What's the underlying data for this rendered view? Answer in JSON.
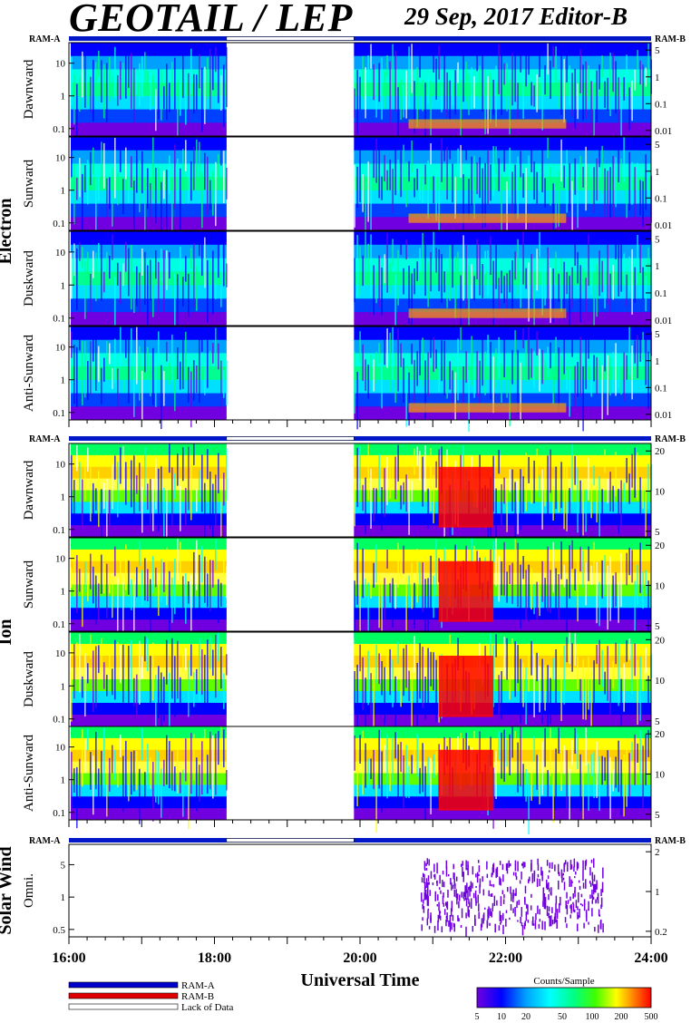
{
  "header": {
    "title": "GEOTAIL / LEP",
    "date_editor": "29 Sep, 2017   Editor-B"
  },
  "chart_data": {
    "type": "heatmap",
    "x_axis": {
      "label": "Universal Time",
      "range": [
        "16:00",
        "24:00"
      ],
      "ticks": [
        "16:00",
        "18:00",
        "20:00",
        "22:00",
        "24:00"
      ]
    },
    "ram_labels": {
      "left": "RAM-A",
      "right": "RAM-B"
    },
    "data_gap": {
      "start": "18:10",
      "end": "19:55"
    },
    "groups": [
      {
        "name": "Electron",
        "left_ticks": [
          "10",
          "1",
          "0.1"
        ],
        "right_ticks": [
          "5",
          "1",
          "0.1",
          "0.01"
        ],
        "panels": [
          "Dawnward",
          "Sunward",
          "Duskward",
          "Anti-Sunward"
        ]
      },
      {
        "name": "Ion",
        "left_ticks": [
          "10",
          "1",
          "0.1"
        ],
        "right_ticks": [
          "20",
          "10",
          "5"
        ],
        "panels": [
          "Dawnward",
          "Sunward",
          "Duskward",
          "Anti-Sunward"
        ]
      },
      {
        "name": "Solar Wind",
        "left_ticks": [
          "5",
          "1",
          "0.5"
        ],
        "right_ticks": [
          "2",
          "1",
          "0.2"
        ],
        "panels": [
          "Omni."
        ]
      }
    ],
    "legend": {
      "items": [
        {
          "label": "RAM-A",
          "color": "#0000cc"
        },
        {
          "label": "RAM-B",
          "color": "#e00000"
        },
        {
          "label": "Lack of Data",
          "color": "#ffffff"
        }
      ]
    },
    "colorbar": {
      "title": "Counts/Sample",
      "ticks": [
        "5",
        "10",
        "20",
        "50",
        "100",
        "200",
        "500"
      ],
      "colors": [
        "#7000e0",
        "#0000ff",
        "#00a0ff",
        "#00ffff",
        "#00ff80",
        "#40ff00",
        "#ffff00",
        "#ff8000",
        "#ff0000"
      ]
    }
  }
}
